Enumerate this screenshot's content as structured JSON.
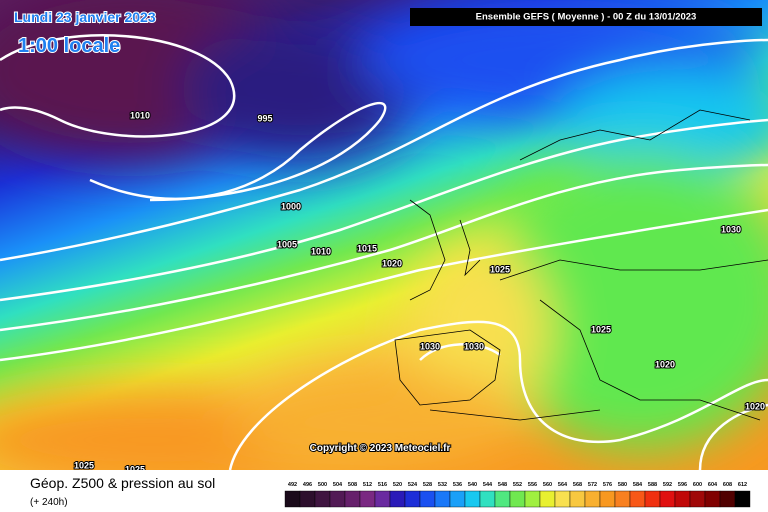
{
  "header": {
    "date": "Lundi 23 janvier 2023",
    "time": "1:00 locale",
    "run": "Ensemble GEFS ( Moyenne ) - 00 Z du 13/01/2023"
  },
  "isobar_labels": [
    1010,
    995,
    1000,
    1005,
    1010,
    1015,
    1020,
    1025,
    1030,
    1025,
    1030,
    1030,
    1020,
    1020,
    1025,
    1025
  ],
  "copyright": "Copyright © 2023 Meteociel.fr",
  "footer": {
    "title": "Géop. Z500 & pression au sol",
    "lead": "(+ 240h)"
  },
  "scale": {
    "values": [
      492,
      496,
      500,
      504,
      508,
      512,
      516,
      520,
      524,
      528,
      532,
      536,
      540,
      544,
      548,
      552,
      556,
      560,
      564,
      568,
      572,
      576,
      580,
      584,
      588,
      592,
      596,
      600,
      604,
      608,
      612
    ],
    "colors": [
      "#1a0a1a",
      "#2d0f2d",
      "#3f1540",
      "#521a55",
      "#66206b",
      "#7a2882",
      "#6a2aa0",
      "#2a1ab8",
      "#1d2ed8",
      "#1a50f0",
      "#1a78f8",
      "#1aa0f8",
      "#18c8f0",
      "#30e0c0",
      "#50e880",
      "#70e850",
      "#a0f040",
      "#e8f030",
      "#f8e050",
      "#f8c840",
      "#f8b030",
      "#f89820",
      "#f88020",
      "#f85818",
      "#f03010",
      "#e01010",
      "#c00808",
      "#a00808",
      "#800000",
      "#500000",
      "#000000"
    ]
  }
}
